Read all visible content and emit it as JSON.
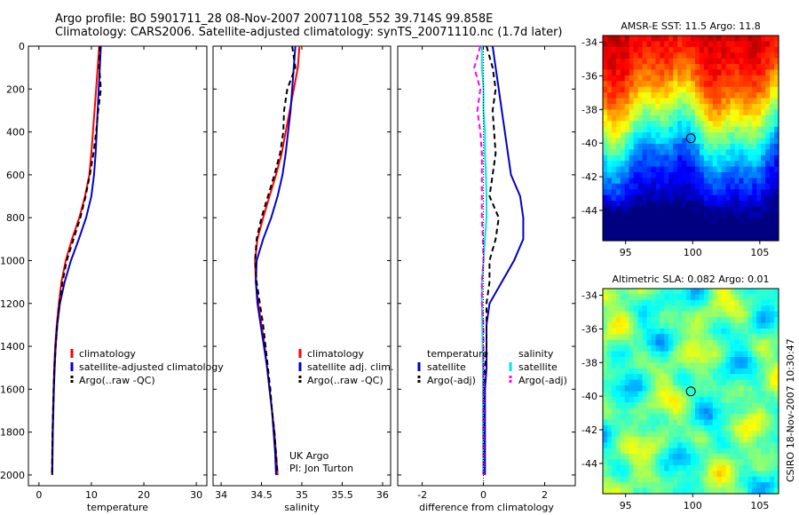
{
  "header": {
    "line1": "Argo profile: BO 5901711_28 08-Nov-2007 20071108_552 39.714S 99.858E",
    "line2": "Climatology: CARS2006. Satellite-adjusted climatology: synTS_20071110.nc (1.7d later)"
  },
  "credit": {
    "line1": "UK Argo",
    "line2": "PI: Jon Turton"
  },
  "side_label": "CSIRO 18-Nov-2007 10:30:47",
  "colors": {
    "red": "#ff0000",
    "blue": "#0000cc",
    "black": "#000000",
    "cyan": "#00e5e5",
    "magenta": "#ff00ff",
    "marker": "#000000"
  },
  "chart_data": [
    {
      "type": "line",
      "name": "temperature",
      "xlabel": "temperature",
      "ylabel": "",
      "xlim": [
        -2,
        32
      ],
      "ylim": [
        2050,
        0
      ],
      "xticks": [
        0,
        10,
        20,
        30
      ],
      "yticks": [
        0,
        200,
        400,
        600,
        800,
        1000,
        1200,
        1400,
        1600,
        1800,
        2000
      ],
      "legend": {
        "position": "lower-right",
        "entries": [
          {
            "label": "climatology",
            "color": "red"
          },
          {
            "label": "satellite-adjusted climatology",
            "color": "blue"
          },
          {
            "label": "Argo(..raw -QC)",
            "color": "black",
            "dash": true
          }
        ]
      },
      "series": [
        {
          "name": "climatology",
          "color": "red",
          "dash": false,
          "depth": [
            0,
            100,
            200,
            300,
            400,
            500,
            600,
            700,
            800,
            900,
            1000,
            1100,
            1200,
            1300,
            1400,
            1500,
            1600,
            1700,
            1800,
            1900,
            2000
          ],
          "values": [
            11.5,
            11.2,
            10.9,
            10.6,
            10.3,
            10.0,
            9.6,
            8.8,
            7.7,
            6.3,
            5.1,
            4.3,
            3.8,
            3.4,
            3.1,
            2.9,
            2.8,
            2.7,
            2.6,
            2.55,
            2.5
          ]
        },
        {
          "name": "satellite-adjusted climatology",
          "color": "blue",
          "dash": false,
          "depth": [
            0,
            100,
            200,
            300,
            400,
            500,
            600,
            700,
            800,
            900,
            1000,
            1100,
            1200,
            1300,
            1400,
            1500,
            1600,
            1700,
            1800,
            1900,
            2000
          ],
          "values": [
            11.8,
            11.6,
            11.4,
            11.2,
            11.0,
            10.8,
            10.5,
            10.0,
            9.0,
            7.6,
            6.1,
            4.9,
            4.0,
            3.5,
            3.2,
            3.0,
            2.85,
            2.75,
            2.65,
            2.6,
            2.55
          ]
        },
        {
          "name": "Argo(..raw -QC)",
          "color": "black",
          "dash": true,
          "depth": [
            0,
            100,
            200,
            300,
            400,
            500,
            600,
            700,
            800,
            900,
            1000,
            1100,
            1200,
            1300,
            1400,
            1500,
            1600,
            1700,
            1800,
            1900,
            2000
          ],
          "values": [
            11.6,
            11.5,
            11.8,
            11.3,
            10.9,
            10.4,
            9.7,
            8.9,
            7.9,
            6.6,
            5.3,
            4.5,
            3.9,
            3.5,
            3.2,
            2.95,
            2.8,
            2.7,
            2.6,
            2.55,
            2.5
          ]
        }
      ]
    },
    {
      "type": "line",
      "name": "salinity",
      "xlabel": "salinity",
      "ylabel": "",
      "xlim": [
        33.9,
        36.1
      ],
      "ylim": [
        2050,
        0
      ],
      "xticks": [
        34,
        34.5,
        35,
        35.5,
        36
      ],
      "legend": {
        "position": "lower-right",
        "entries": [
          {
            "label": "climatology",
            "color": "red"
          },
          {
            "label": "satellite adj. clim.",
            "color": "blue"
          },
          {
            "label": "Argo(..raw -QC)",
            "color": "black",
            "dash": true
          }
        ]
      },
      "series": [
        {
          "name": "climatology",
          "color": "red",
          "dash": false,
          "depth": [
            0,
            100,
            200,
            300,
            400,
            500,
            600,
            700,
            800,
            900,
            1000,
            1100,
            1200,
            1300,
            1400,
            1500,
            1600,
            1700,
            1800,
            1900,
            2000
          ],
          "values": [
            34.97,
            34.95,
            34.9,
            34.85,
            34.8,
            34.75,
            34.68,
            34.6,
            34.52,
            34.45,
            34.42,
            34.43,
            34.46,
            34.5,
            34.54,
            34.57,
            34.6,
            34.63,
            34.66,
            34.68,
            34.7
          ]
        },
        {
          "name": "satellite adj. clim.",
          "color": "blue",
          "dash": false,
          "depth": [
            0,
            100,
            200,
            300,
            400,
            500,
            600,
            700,
            800,
            900,
            1000,
            1100,
            1200,
            1300,
            1400,
            1500,
            1600,
            1700,
            1800,
            1900,
            2000
          ],
          "values": [
            34.92,
            34.9,
            34.88,
            34.86,
            34.83,
            34.8,
            34.76,
            34.7,
            34.62,
            34.52,
            34.44,
            34.43,
            34.45,
            34.49,
            34.53,
            34.57,
            34.6,
            34.63,
            34.65,
            34.67,
            34.68
          ]
        },
        {
          "name": "Argo(..raw -QC)",
          "color": "black",
          "dash": true,
          "depth": [
            0,
            100,
            200,
            300,
            400,
            500,
            600,
            700,
            800,
            900,
            1000,
            1100,
            1200,
            1300,
            1400,
            1500,
            1600,
            1700,
            1800,
            1900,
            2000
          ],
          "values": [
            34.88,
            34.92,
            34.82,
            34.78,
            34.77,
            34.73,
            34.66,
            34.58,
            34.5,
            34.44,
            34.42,
            34.44,
            34.48,
            34.52,
            34.55,
            34.58,
            34.61,
            34.63,
            34.66,
            34.68,
            34.7
          ]
        }
      ]
    },
    {
      "type": "line",
      "name": "difference",
      "xlabel": "difference from climatology",
      "ylabel": "",
      "xlim": [
        -2.8,
        3.0
      ],
      "ylim": [
        2050,
        0
      ],
      "xticks": [
        -2,
        0,
        2
      ],
      "legend": {
        "position": "lower",
        "columns": [
          {
            "heading": "temperature",
            "entries": [
              {
                "label": "satellite",
                "color": "blue"
              },
              {
                "label": "Argo(-adj)",
                "color": "black",
                "dash": true
              }
            ]
          },
          {
            "heading": "salinity",
            "entries": [
              {
                "label": "satellite",
                "color": "cyan"
              },
              {
                "label": "Argo(-adj)",
                "color": "magenta",
                "dash": true
              }
            ]
          }
        ]
      },
      "series": [
        {
          "name": "temperature satellite",
          "color": "blue",
          "dash": false,
          "depth": [
            0,
            100,
            200,
            300,
            400,
            500,
            600,
            700,
            800,
            900,
            1000,
            1100,
            1200,
            1300,
            1400,
            1500,
            1600,
            1700,
            1800,
            1900,
            2000
          ],
          "values": [
            0.3,
            0.4,
            0.5,
            0.6,
            0.7,
            0.8,
            0.9,
            1.2,
            1.3,
            1.3,
            1.0,
            0.6,
            0.2,
            0.1,
            0.1,
            0.1,
            0.05,
            0.05,
            0.05,
            0.05,
            0.05
          ]
        },
        {
          "name": "temperature Argo(-adj)",
          "color": "black",
          "dash": true,
          "depth": [
            0,
            100,
            200,
            300,
            400,
            500,
            600,
            700,
            800,
            900,
            1000,
            1100,
            1200,
            1300,
            1400,
            1500,
            1600,
            1700,
            1800,
            1900,
            2000
          ],
          "values": [
            0.1,
            0.3,
            0.4,
            0.3,
            0.35,
            0.4,
            0.3,
            0.2,
            0.5,
            0.4,
            0.2,
            0.2,
            0.1,
            0.1,
            0.1,
            0.05,
            0.0,
            0.0,
            0.0,
            0.0,
            0.0
          ]
        },
        {
          "name": "salinity satellite",
          "color": "cyan",
          "dash": false,
          "depth": [
            0,
            100,
            200,
            300,
            400,
            500,
            600,
            700,
            800,
            900,
            1000,
            1100,
            1200,
            1300,
            1400,
            1500,
            1600,
            1700,
            1800,
            1900,
            2000
          ],
          "values": [
            -0.05,
            -0.05,
            0.0,
            0.0,
            0.05,
            0.05,
            0.08,
            0.1,
            0.1,
            0.05,
            0.0,
            -0.05,
            -0.05,
            -0.04,
            -0.03,
            -0.02,
            -0.02,
            -0.02,
            -0.02,
            -0.01,
            -0.01
          ]
        },
        {
          "name": "salinity Argo(-adj)",
          "color": "magenta",
          "dash": true,
          "depth": [
            0,
            100,
            200,
            300,
            400,
            500,
            600,
            700,
            800,
            900,
            1000,
            1100,
            1200,
            1300,
            1400,
            1500,
            1600,
            1700,
            1800,
            1900,
            2000
          ],
          "values": [
            -0.1,
            -0.3,
            -0.1,
            -0.2,
            -0.1,
            -0.05,
            -0.05,
            -0.05,
            -0.05,
            -0.02,
            0.0,
            -0.05,
            -0.05,
            0.0,
            0.0,
            0.0,
            0.0,
            0.0,
            0.0,
            0.0,
            0.0
          ]
        }
      ]
    },
    {
      "type": "heatmap",
      "name": "sst-map",
      "title": "AMSR-E SST: 11.5 Argo: 11.8",
      "xlim": [
        93.3,
        106.4
      ],
      "ylim": [
        -45.8,
        -33.6
      ],
      "xticks": [
        95,
        100,
        105
      ],
      "yticks": [
        -34,
        -36,
        -38,
        -40,
        -42,
        -44
      ],
      "colormap": "jet",
      "marker": {
        "lon": 99.858,
        "lat": -39.714
      }
    },
    {
      "type": "heatmap",
      "name": "sla-map",
      "title": "Altimetric SLA: 0.082 Argo: 0.01",
      "xlim": [
        93.3,
        106.4
      ],
      "ylim": [
        -45.8,
        -33.6
      ],
      "xticks": [
        95,
        100,
        105
      ],
      "yticks": [
        -34,
        -36,
        -38,
        -40,
        -42,
        -44
      ],
      "colormap": "jet",
      "marker": {
        "lon": 99.858,
        "lat": -39.714
      }
    }
  ]
}
